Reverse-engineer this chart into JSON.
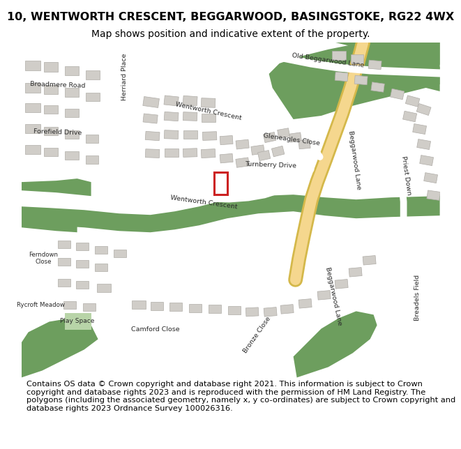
{
  "title_line1": "10, WENTWORTH CRESCENT, BEGGARWOOD, BASINGSTOKE, RG22 4WX",
  "title_line2": "Map shows position and indicative extent of the property.",
  "footer_text": "Contains OS data © Crown copyright and database right 2021. This information is subject to Crown copyright and database rights 2023 and is reproduced with the permission of HM Land Registry. The polygons (including the associated geometry, namely x, y co-ordinates) are subject to Crown copyright and database rights 2023 Ordnance Survey 100026316.",
  "bg_color": "#ffffff",
  "map_bg": "#e8e6e1",
  "road_color": "#ffffff",
  "green_color": "#6d9e5e",
  "green_light": "#b8d4a8",
  "building_color": "#d0cdc8",
  "highlight_color": "#cc2222",
  "road_major_color": "#f5d78e",
  "title_fontsize": 11.5,
  "subtitle_fontsize": 10,
  "footer_fontsize": 8.2
}
